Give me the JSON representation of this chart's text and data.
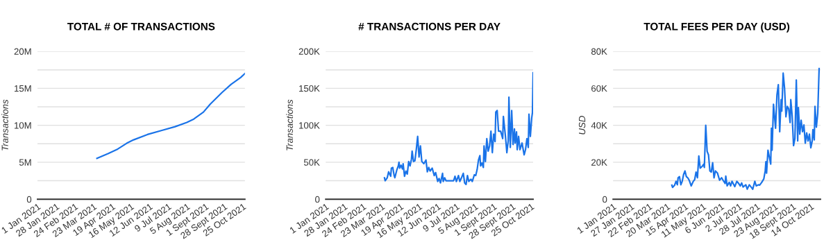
{
  "chart_data": [
    {
      "type": "line",
      "title": "TOTAL # OF TRANSACTIONS",
      "ylabel": "Transactions",
      "grid": "y",
      "legend": false,
      "marker": "none",
      "line_style": "solid",
      "xlim": [
        "2021-01-01",
        "2021-10-28"
      ],
      "xticks": [
        {
          "value": "2021-01-01",
          "label": "1 Jan 2021"
        },
        {
          "value": "2021-01-28",
          "label": "28 Jan 2021"
        },
        {
          "value": "2021-02-24",
          "label": "24 Feb 2021"
        },
        {
          "value": "2021-03-23",
          "label": "23 Mar 2021"
        },
        {
          "value": "2021-04-19",
          "label": "19 Apr 2021"
        },
        {
          "value": "2021-05-16",
          "label": "16 May 2021"
        },
        {
          "value": "2021-06-12",
          "label": "12 Jun 2021"
        },
        {
          "value": "2021-07-09",
          "label": "9 Jul 2021"
        },
        {
          "value": "2021-08-05",
          "label": "5 Aug 2021"
        },
        {
          "value": "2021-09-01",
          "label": "1 Sept 2021"
        },
        {
          "value": "2021-09-28",
          "label": "28 Sept 2021"
        },
        {
          "value": "2021-10-25",
          "label": "25 Oct 2021"
        }
      ],
      "ylim": [
        0,
        20000000
      ],
      "yticks": [
        {
          "value": 0,
          "label": "0"
        },
        {
          "value": 2500000,
          "label": null
        },
        {
          "value": 5000000,
          "label": "5M"
        },
        {
          "value": 7500000,
          "label": null
        },
        {
          "value": 10000000,
          "label": "10M"
        },
        {
          "value": 12500000,
          "label": null
        },
        {
          "value": 15000000,
          "label": "15M"
        },
        {
          "value": 17500000,
          "label": null
        },
        {
          "value": 20000000,
          "label": "20M"
        }
      ],
      "series": [
        {
          "color": "#1a73e8",
          "x": [
            "2021-03-28",
            "2021-04-13",
            "2021-04-27",
            "2021-05-10",
            "2021-05-20",
            "2021-06-09",
            "2021-06-29",
            "2021-07-19",
            "2021-08-05",
            "2021-08-15",
            "2021-08-29",
            "2021-09-08",
            "2021-09-25",
            "2021-10-08",
            "2021-10-22",
            "2021-10-28"
          ],
          "values": [
            5530000,
            6160000,
            6780000,
            7560000,
            8030000,
            8750000,
            9280000,
            9810000,
            10380000,
            10840000,
            11780000,
            12880000,
            14440000,
            15530000,
            16470000,
            17000000
          ]
        }
      ]
    },
    {
      "type": "line",
      "title": "# TRANSACTIONS PER DAY",
      "ylabel": "Transactions",
      "grid": "y",
      "legend": false,
      "marker": "none",
      "line_style": "solid",
      "xlim": [
        "2021-01-01",
        "2021-10-28"
      ],
      "xticks": [
        {
          "value": "2021-01-01",
          "label": "1 Jan 2021"
        },
        {
          "value": "2021-01-28",
          "label": "28 Jan 2021"
        },
        {
          "value": "2021-02-24",
          "label": "24 Feb 2021"
        },
        {
          "value": "2021-03-23",
          "label": "23 Mar 2021"
        },
        {
          "value": "2021-04-19",
          "label": "19 Apr 2021"
        },
        {
          "value": "2021-05-16",
          "label": "16 May 2021"
        },
        {
          "value": "2021-06-12",
          "label": "12 Jun 2021"
        },
        {
          "value": "2021-07-09",
          "label": "9 Jul 2021"
        },
        {
          "value": "2021-08-05",
          "label": "5 Aug 2021"
        },
        {
          "value": "2021-09-01",
          "label": "1 Sept 2021"
        },
        {
          "value": "2021-09-28",
          "label": "28 Sept 2021"
        },
        {
          "value": "2021-10-25",
          "label": "25 Oct 2021"
        }
      ],
      "ylim": [
        0,
        200000
      ],
      "yticks": [
        {
          "value": 0,
          "label": "0"
        },
        {
          "value": 25000,
          "label": null
        },
        {
          "value": 50000,
          "label": "50K"
        },
        {
          "value": 75000,
          "label": null
        },
        {
          "value": 100000,
          "label": "100K"
        },
        {
          "value": 125000,
          "label": null
        },
        {
          "value": 150000,
          "label": "150K"
        },
        {
          "value": 175000,
          "label": null
        },
        {
          "value": 200000,
          "label": "200K"
        }
      ],
      "series": [
        {
          "color": "#1a73e8",
          "x": [
            "2021-03-27",
            "2021-03-28",
            "2021-03-31",
            "2021-04-02",
            "2021-04-05",
            "2021-04-06",
            "2021-04-08",
            "2021-04-10",
            "2021-04-11",
            "2021-04-14",
            "2021-04-16",
            "2021-04-17",
            "2021-04-18",
            "2021-04-20",
            "2021-04-22",
            "2021-04-23",
            "2021-04-25",
            "2021-04-27",
            "2021-04-29",
            "2021-05-01",
            "2021-05-03",
            "2021-05-05",
            "2021-05-06",
            "2021-05-08",
            "2021-05-10",
            "2021-05-12",
            "2021-05-14",
            "2021-05-16",
            "2021-05-18",
            "2021-05-20",
            "2021-05-23",
            "2021-05-26",
            "2021-05-28",
            "2021-05-30",
            "2021-06-01",
            "2021-06-04",
            "2021-06-07",
            "2021-06-09",
            "2021-06-12",
            "2021-06-14",
            "2021-06-16",
            "2021-06-19",
            "2021-06-20",
            "2021-06-22",
            "2021-06-24",
            "2021-06-30",
            "2021-07-05",
            "2021-07-07",
            "2021-07-09",
            "2021-07-12",
            "2021-07-14",
            "2021-07-16",
            "2021-07-19",
            "2021-07-21",
            "2021-07-23",
            "2021-07-25",
            "2021-07-27",
            "2021-07-30",
            "2021-08-01",
            "2021-08-04",
            "2021-08-06",
            "2021-08-08",
            "2021-08-10",
            "2021-08-12",
            "2021-08-13",
            "2021-08-15",
            "2021-08-17",
            "2021-08-18",
            "2021-08-20",
            "2021-08-22",
            "2021-08-24",
            "2021-08-26",
            "2021-08-28",
            "2021-08-30",
            "2021-09-01",
            "2021-09-03",
            "2021-09-04",
            "2021-09-06",
            "2021-09-08",
            "2021-09-11",
            "2021-09-14",
            "2021-09-15",
            "2021-09-18",
            "2021-09-20",
            "2021-09-22",
            "2021-09-23",
            "2021-09-25",
            "2021-09-27",
            "2021-09-29",
            "2021-10-01",
            "2021-10-02",
            "2021-10-04",
            "2021-10-05",
            "2021-10-07",
            "2021-10-09",
            "2021-10-12",
            "2021-10-15",
            "2021-10-17",
            "2021-10-19",
            "2021-10-21",
            "2021-10-22",
            "2021-10-24",
            "2021-10-26",
            "2021-10-27",
            "2021-10-28"
          ],
          "values": [
            29000,
            25000,
            29000,
            37000,
            31000,
            42000,
            43000,
            32000,
            29000,
            40000,
            45000,
            50000,
            42000,
            46000,
            41000,
            48000,
            31000,
            38000,
            34000,
            51000,
            45000,
            54000,
            65000,
            51000,
            52000,
            67000,
            85000,
            57000,
            72000,
            51000,
            48000,
            53000,
            37000,
            43000,
            38000,
            42000,
            32000,
            36000,
            24000,
            28000,
            22000,
            35000,
            24000,
            29000,
            25000,
            25000,
            25000,
            31000,
            24000,
            32000,
            24000,
            28000,
            35000,
            22000,
            20000,
            32000,
            24000,
            27000,
            24000,
            33000,
            32000,
            40000,
            53000,
            59000,
            45000,
            49000,
            43000,
            72000,
            51000,
            82000,
            65000,
            72000,
            92000,
            63000,
            88000,
            78000,
            118000,
            120000,
            92000,
            92000,
            82000,
            112000,
            85000,
            63000,
            79000,
            138000,
            70000,
            120000,
            74000,
            95000,
            76000,
            91000,
            67000,
            85000,
            67000,
            76000,
            60000,
            67000,
            82000,
            70000,
            115000,
            85000,
            110000,
            117000,
            171000
          ]
        }
      ]
    },
    {
      "type": "line",
      "title": "TOTAL FEES PER DAY (USD)",
      "ylabel": "USD",
      "grid": "y",
      "legend": false,
      "marker": "none",
      "line_style": "solid",
      "xlim": [
        "2021-01-01",
        "2021-10-28"
      ],
      "xticks": [
        {
          "value": "2021-01-01",
          "label": "1 Jan 2021"
        },
        {
          "value": "2021-01-27",
          "label": "27 Jan 2021"
        },
        {
          "value": "2021-02-22",
          "label": "22 Feb 2021"
        },
        {
          "value": "2021-03-20",
          "label": "20 Mar 2021"
        },
        {
          "value": "2021-04-15",
          "label": "15 Apr 2021"
        },
        {
          "value": "2021-05-11",
          "label": "11 May 2021"
        },
        {
          "value": "2021-06-06",
          "label": "6 Jun 2021"
        },
        {
          "value": "2021-07-02",
          "label": "2 Jul 2021"
        },
        {
          "value": "2021-07-28",
          "label": "28 Jul 2021"
        },
        {
          "value": "2021-08-23",
          "label": "23 Aug 2021"
        },
        {
          "value": "2021-09-18",
          "label": "18 Sept 2021"
        },
        {
          "value": "2021-10-14",
          "label": "14 Oct 2021"
        }
      ],
      "ylim": [
        0,
        80000
      ],
      "yticks": [
        {
          "value": 0,
          "label": "0"
        },
        {
          "value": 10000,
          "label": null
        },
        {
          "value": 20000,
          "label": "20K"
        },
        {
          "value": 30000,
          "label": null
        },
        {
          "value": 40000,
          "label": "40K"
        },
        {
          "value": 50000,
          "label": null
        },
        {
          "value": 60000,
          "label": "60K"
        },
        {
          "value": 70000,
          "label": null
        },
        {
          "value": 80000,
          "label": "80K"
        }
      ],
      "series": [
        {
          "color": "#1a73e8",
          "x": [
            "2021-03-27",
            "2021-03-28",
            "2021-03-31",
            "2021-04-02",
            "2021-04-04",
            "2021-04-05",
            "2021-04-07",
            "2021-04-09",
            "2021-04-11",
            "2021-04-13",
            "2021-04-15",
            "2021-04-17",
            "2021-04-19",
            "2021-04-21",
            "2021-04-24",
            "2021-04-27",
            "2021-04-29",
            "2021-05-01",
            "2021-05-03",
            "2021-05-05",
            "2021-05-07",
            "2021-05-10",
            "2021-05-12",
            "2021-05-13",
            "2021-05-15",
            "2021-05-17",
            "2021-05-19",
            "2021-05-21",
            "2021-05-23",
            "2021-05-25",
            "2021-05-27",
            "2021-05-29",
            "2021-06-01",
            "2021-06-04",
            "2021-06-07",
            "2021-06-09",
            "2021-06-12",
            "2021-06-13",
            "2021-06-15",
            "2021-06-18",
            "2021-06-20",
            "2021-06-22",
            "2021-06-26",
            "2021-06-29",
            "2021-07-01",
            "2021-07-04",
            "2021-07-06",
            "2021-07-08",
            "2021-07-12",
            "2021-07-14",
            "2021-07-17",
            "2021-07-20",
            "2021-07-22",
            "2021-07-25",
            "2021-07-27",
            "2021-07-30",
            "2021-08-01",
            "2021-08-04",
            "2021-08-07",
            "2021-08-09",
            "2021-08-10",
            "2021-08-11",
            "2021-08-13",
            "2021-08-15",
            "2021-08-17",
            "2021-08-18",
            "2021-08-19",
            "2021-08-21",
            "2021-08-23",
            "2021-08-24",
            "2021-08-26",
            "2021-08-28",
            "2021-08-30",
            "2021-09-01",
            "2021-09-02",
            "2021-09-04",
            "2021-09-06",
            "2021-09-08",
            "2021-09-10",
            "2021-09-12",
            "2021-09-14",
            "2021-09-15",
            "2021-09-17",
            "2021-09-19",
            "2021-09-21",
            "2021-09-23",
            "2021-09-25",
            "2021-09-26",
            "2021-09-28",
            "2021-09-30",
            "2021-10-02",
            "2021-10-04",
            "2021-10-06",
            "2021-10-08",
            "2021-10-10",
            "2021-10-12",
            "2021-10-14",
            "2021-10-16",
            "2021-10-17",
            "2021-10-19",
            "2021-10-20",
            "2021-10-22",
            "2021-10-24",
            "2021-10-26"
          ],
          "values": [
            7600,
            6400,
            7600,
            9700,
            7800,
            11600,
            12200,
            7800,
            9700,
            13400,
            15300,
            12200,
            11600,
            10300,
            7200,
            9700,
            10600,
            14700,
            11600,
            23400,
            16800,
            17800,
            19000,
            17200,
            40000,
            25900,
            24000,
            15300,
            14700,
            19700,
            11600,
            15300,
            14100,
            10300,
            11600,
            10300,
            8500,
            12500,
            7200,
            9100,
            7200,
            9700,
            6800,
            9700,
            8800,
            7200,
            8800,
            6600,
            7800,
            5400,
            7800,
            6400,
            5400,
            9700,
            7200,
            7800,
            7600,
            9100,
            11000,
            15300,
            20300,
            14100,
            26500,
            22800,
            19000,
            38400,
            26500,
            51400,
            42700,
            38400,
            56400,
            62000,
            36500,
            53900,
            47700,
            68200,
            60100,
            44600,
            50200,
            48900,
            41500,
            53900,
            45200,
            29000,
            32800,
            64500,
            31500,
            49600,
            35200,
            42700,
            36500,
            40200,
            30300,
            35900,
            31500,
            35200,
            27800,
            31500,
            37700,
            32100,
            50200,
            39000,
            46400,
            70700
          ]
        }
      ]
    }
  ]
}
